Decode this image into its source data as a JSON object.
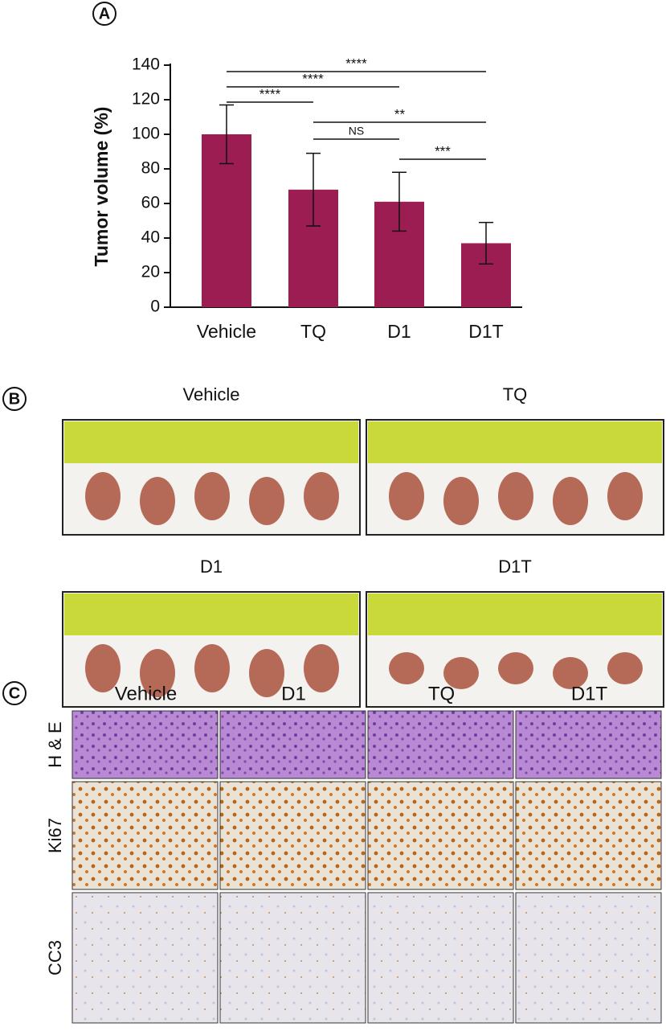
{
  "chart_data": {
    "type": "bar",
    "panel": "A",
    "y_label": "Tumor volume (%)",
    "categories": [
      "Vehicle",
      "TQ",
      "D1",
      "D1T"
    ],
    "values": [
      100,
      68,
      61,
      37
    ],
    "errors": [
      17,
      21,
      17,
      12
    ],
    "color": "#9b1d52",
    "ylim": [
      0,
      140
    ],
    "yticks": [
      0,
      20,
      40,
      60,
      80,
      100,
      120,
      140
    ],
    "annotations": [
      {
        "from": "Vehicle",
        "to": "D1T",
        "label": "****"
      },
      {
        "from": "Vehicle",
        "to": "D1",
        "label": "****"
      },
      {
        "from": "Vehicle",
        "to": "TQ",
        "label": "****"
      },
      {
        "from": "TQ",
        "to": "D1T",
        "label": "**"
      },
      {
        "from": "TQ",
        "to": "D1",
        "label": "NS"
      },
      {
        "from": "D1",
        "to": "D1T",
        "label": "***"
      }
    ]
  },
  "panel_b": {
    "label": "B",
    "photos": [
      "Vehicle",
      "TQ",
      "D1",
      "D1T"
    ]
  },
  "panel_c": {
    "label": "C",
    "columns": [
      "Vehicle",
      "D1",
      "TQ",
      "D1T"
    ],
    "rows": [
      "H & E",
      "Ki67",
      "CC3"
    ]
  }
}
